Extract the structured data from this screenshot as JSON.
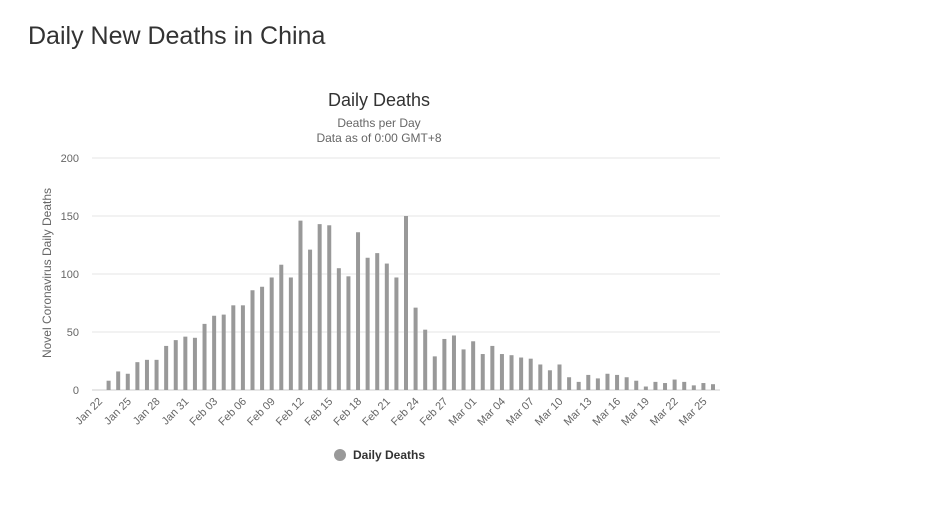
{
  "page": {
    "title": "Daily New Deaths in China"
  },
  "colors": {
    "bar": "#999999",
    "grid": "#e6e6e6",
    "text": "#333333",
    "axis_text": "#666666"
  },
  "chart_data": {
    "type": "bar",
    "title": "Daily Deaths",
    "subtitle": [
      "Deaths per Day",
      "Data as of 0:00 GMT+8"
    ],
    "xlabel": "",
    "ylabel": "Novel Coronavirus Daily Deaths",
    "ylim": [
      0,
      200
    ],
    "yticks": [
      0,
      50,
      100,
      150,
      200
    ],
    "grid": true,
    "legend_position": "bottom-center",
    "categories": [
      "Jan 22",
      "Jan 23",
      "Jan 24",
      "Jan 25",
      "Jan 26",
      "Jan 27",
      "Jan 28",
      "Jan 29",
      "Jan 30",
      "Jan 31",
      "Feb 01",
      "Feb 02",
      "Feb 03",
      "Feb 04",
      "Feb 05",
      "Feb 06",
      "Feb 07",
      "Feb 08",
      "Feb 09",
      "Feb 10",
      "Feb 11",
      "Feb 12",
      "Feb 13",
      "Feb 14",
      "Feb 15",
      "Feb 16",
      "Feb 17",
      "Feb 18",
      "Feb 19",
      "Feb 20",
      "Feb 21",
      "Feb 22",
      "Feb 23",
      "Feb 24",
      "Feb 25",
      "Feb 26",
      "Feb 27",
      "Feb 28",
      "Feb 29",
      "Mar 01",
      "Mar 02",
      "Mar 03",
      "Mar 04",
      "Mar 05",
      "Mar 06",
      "Mar 07",
      "Mar 08",
      "Mar 09",
      "Mar 10",
      "Mar 11",
      "Mar 12",
      "Mar 13",
      "Mar 14",
      "Mar 15",
      "Mar 16",
      "Mar 17",
      "Mar 18",
      "Mar 19",
      "Mar 20",
      "Mar 21",
      "Mar 22",
      "Mar 23",
      "Mar 24",
      "Mar 25",
      "Mar 26"
    ],
    "xtick_labels": [
      "Jan 22",
      "Jan 25",
      "Jan 28",
      "Jan 31",
      "Feb 03",
      "Feb 06",
      "Feb 09",
      "Feb 12",
      "Feb 15",
      "Feb 18",
      "Feb 21",
      "Feb 24",
      "Feb 27",
      "Mar 01",
      "Mar 04",
      "Mar 07",
      "Mar 10",
      "Mar 13",
      "Mar 16",
      "Mar 19",
      "Mar 22",
      "Mar 25"
    ],
    "series": [
      {
        "name": "Daily Deaths",
        "values": [
          0,
          8,
          16,
          14,
          24,
          26,
          26,
          38,
          43,
          46,
          45,
          57,
          64,
          65,
          73,
          73,
          86,
          89,
          97,
          108,
          97,
          146,
          121,
          143,
          142,
          105,
          98,
          136,
          114,
          118,
          109,
          97,
          150,
          71,
          52,
          29,
          44,
          47,
          35,
          42,
          31,
          38,
          31,
          30,
          28,
          27,
          22,
          17,
          22,
          11,
          7,
          13,
          10,
          14,
          13,
          11,
          8,
          3,
          7,
          6,
          9,
          7,
          4,
          6,
          5
        ]
      }
    ]
  }
}
